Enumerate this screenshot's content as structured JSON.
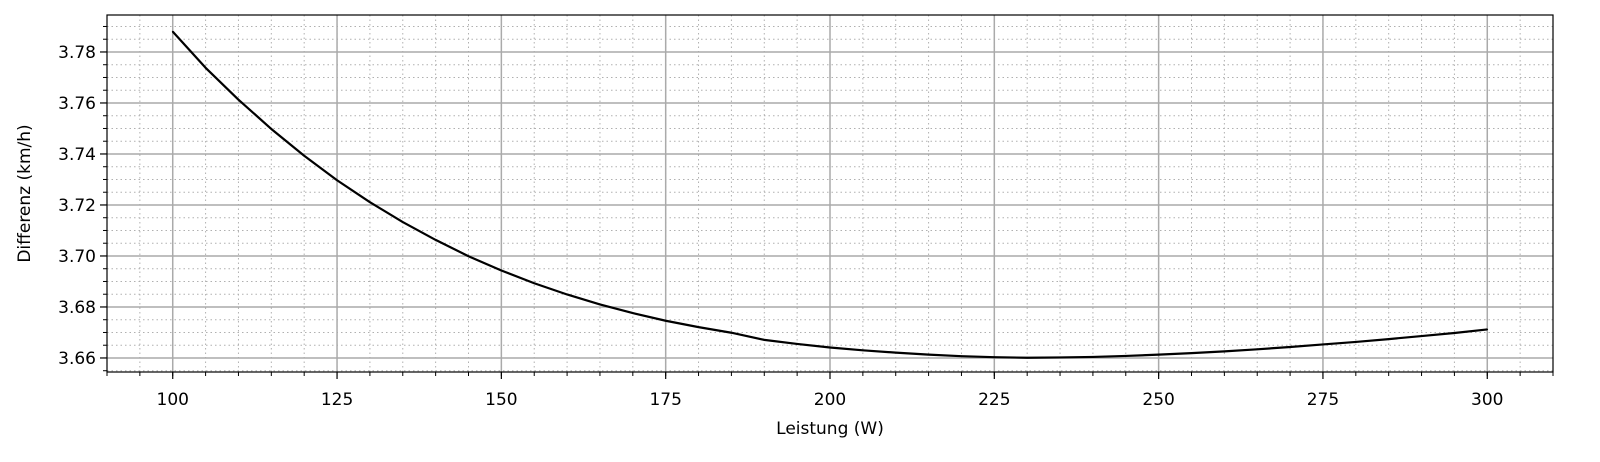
{
  "chart_data": {
    "type": "line",
    "title": "",
    "xlabel": "Leistung (W)",
    "ylabel": "Differenz (km/h)",
    "xlim": [
      90,
      310
    ],
    "ylim": [
      3.6545,
      3.7945
    ],
    "xticks": [
      100,
      125,
      150,
      175,
      200,
      225,
      250,
      275,
      300
    ],
    "xtick_labels": [
      "100",
      "125",
      "150",
      "175",
      "200",
      "225",
      "250",
      "275",
      "300"
    ],
    "yticks": [
      3.66,
      3.68,
      3.7,
      3.72,
      3.74,
      3.76,
      3.78
    ],
    "ytick_labels": [
      "3.66",
      "3.68",
      "3.70",
      "3.72",
      "3.74",
      "3.76",
      "3.78"
    ],
    "x_minor_step": 5,
    "y_minor_step": 0.005,
    "grid": "major solid, minor dotted",
    "legend": "none",
    "series": [
      {
        "color": "#000000",
        "x": [
          100,
          105,
          110,
          115,
          120,
          125,
          130,
          135,
          140,
          145,
          150,
          155,
          160,
          165,
          170,
          175,
          180,
          185,
          190,
          195,
          200,
          205,
          210,
          215,
          220,
          225,
          230,
          235,
          240,
          245,
          250,
          255,
          260,
          265,
          270,
          275,
          280,
          285,
          290,
          295,
          300
        ],
        "values": [
          3.788,
          3.7738,
          3.7613,
          3.7498,
          3.7393,
          3.7297,
          3.7211,
          3.7133,
          3.7063,
          3.6999,
          3.6943,
          3.6893,
          3.6849,
          3.681,
          3.6776,
          3.6746,
          3.6721,
          3.6699,
          3.6671,
          3.6655,
          3.6641,
          3.663,
          3.6621,
          3.6613,
          3.6607,
          3.6603,
          3.6601,
          3.6602,
          3.6604,
          3.6608,
          3.6613,
          3.6619,
          3.6626,
          3.6634,
          3.6643,
          3.6653,
          3.6663,
          3.6674,
          3.6686,
          3.6698,
          3.6712
        ]
      }
    ]
  }
}
